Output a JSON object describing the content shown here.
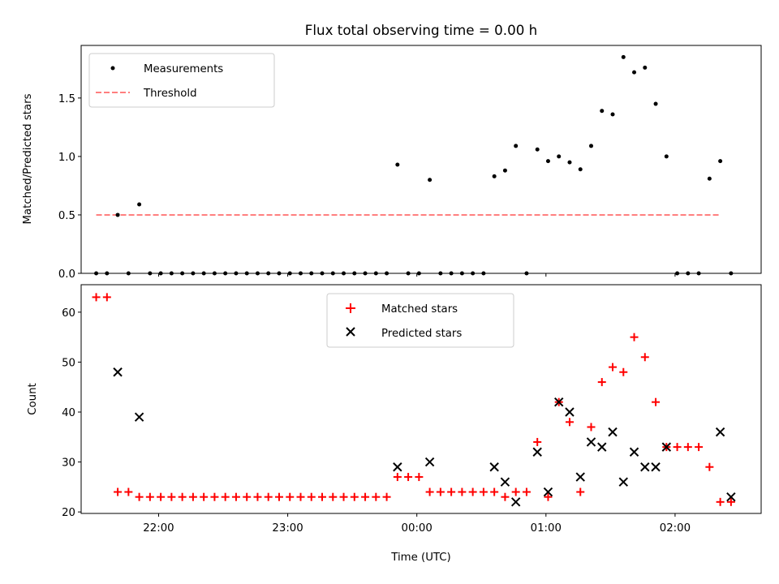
{
  "figure": {
    "title": "Flux total observing time = 0.00 h",
    "xlabel": "Time (UTC)"
  },
  "colors": {
    "measurements": "#000000",
    "threshold": "#ff7f7f",
    "matched": "#ff0000",
    "predicted": "#000000"
  },
  "chart_data": [
    {
      "type": "scatter",
      "panel": "top",
      "ylabel": "Matched/Predicted stars",
      "ylim": [
        0,
        1.95
      ],
      "xlim": [
        "21:24",
        "02:40"
      ],
      "yticks": [
        0.0,
        0.5,
        1.0,
        1.5
      ],
      "ytick_labels": [
        "0.0",
        "0.5",
        "1.0",
        "1.5"
      ],
      "legend": {
        "placement": "top-left",
        "entries": [
          "Measurements",
          "Threshold"
        ]
      },
      "series": [
        {
          "name": "Measurements",
          "marker": "dot",
          "x": [
            "21:31",
            "21:36",
            "21:41",
            "21:46",
            "21:51",
            "21:56",
            "22:01",
            "22:06",
            "22:11",
            "22:16",
            "22:21",
            "22:26",
            "22:31",
            "22:36",
            "22:41",
            "22:46",
            "22:51",
            "22:56",
            "23:01",
            "23:06",
            "23:11",
            "23:16",
            "23:21",
            "23:26",
            "23:31",
            "23:36",
            "23:41",
            "23:46",
            "23:51",
            "23:56",
            "00:01",
            "00:06",
            "00:11",
            "00:16",
            "00:21",
            "00:26",
            "00:31",
            "00:36",
            "00:41",
            "00:46",
            "00:51",
            "00:56",
            "01:01",
            "01:06",
            "01:11",
            "01:16",
            "01:21",
            "01:26",
            "01:31",
            "01:36",
            "01:41",
            "01:46",
            "01:51",
            "01:56",
            "02:01",
            "02:06",
            "02:11",
            "02:16",
            "02:21",
            "02:26"
          ],
          "y": [
            0,
            0,
            0.5,
            0,
            0.59,
            0,
            0,
            0,
            0,
            0,
            0,
            0,
            0,
            0,
            0,
            0,
            0,
            0,
            0,
            0,
            0,
            0,
            0,
            0,
            0,
            0,
            0,
            0,
            0.93,
            0,
            0,
            0.8,
            0,
            0,
            0,
            0,
            0,
            0.83,
            0.88,
            1.09,
            0,
            1.06,
            0.96,
            1.0,
            0.95,
            0.89,
            1.09,
            1.39,
            1.36,
            1.85,
            1.72,
            1.76,
            1.45,
            1.0,
            0,
            0,
            0,
            0.81,
            0.96,
            0
          ]
        },
        {
          "name": "Threshold",
          "style": "dashed",
          "x": [
            "21:31",
            "02:21"
          ],
          "y": [
            0.5,
            0.5
          ]
        }
      ]
    },
    {
      "type": "scatter",
      "panel": "bottom",
      "ylabel": "Count",
      "ylim": [
        19.7,
        65.5
      ],
      "xlim": [
        "21:24",
        "02:40"
      ],
      "yticks": [
        20,
        30,
        40,
        50,
        60
      ],
      "ytick_labels": [
        "20",
        "30",
        "40",
        "50",
        "60"
      ],
      "xticks": [
        "22:00",
        "23:00",
        "00:00",
        "01:00",
        "02:00"
      ],
      "xtick_labels": [
        "22:00",
        "23:00",
        "00:00",
        "01:00",
        "02:00"
      ],
      "legend": {
        "placement": "top-center",
        "entries": [
          "Matched stars",
          "Predicted stars"
        ]
      },
      "series": [
        {
          "name": "Matched stars",
          "marker": "plus",
          "x": [
            "21:31",
            "21:36",
            "21:41",
            "21:46",
            "21:51",
            "21:56",
            "22:01",
            "22:06",
            "22:11",
            "22:16",
            "22:21",
            "22:26",
            "22:31",
            "22:36",
            "22:41",
            "22:46",
            "22:51",
            "22:56",
            "23:01",
            "23:06",
            "23:11",
            "23:16",
            "23:21",
            "23:26",
            "23:31",
            "23:36",
            "23:41",
            "23:46",
            "23:51",
            "23:56",
            "00:01",
            "00:06",
            "00:11",
            "00:16",
            "00:21",
            "00:26",
            "00:31",
            "00:36",
            "00:41",
            "00:46",
            "00:51",
            "00:56",
            "01:01",
            "01:06",
            "01:11",
            "01:16",
            "01:21",
            "01:26",
            "01:31",
            "01:36",
            "01:41",
            "01:46",
            "01:51",
            "01:56",
            "02:01",
            "02:06",
            "02:11",
            "02:16",
            "02:21",
            "02:26"
          ],
          "y": [
            63,
            63,
            24,
            24,
            23,
            23,
            23,
            23,
            23,
            23,
            23,
            23,
            23,
            23,
            23,
            23,
            23,
            23,
            23,
            23,
            23,
            23,
            23,
            23,
            23,
            23,
            23,
            23,
            27,
            27,
            27,
            24,
            24,
            24,
            24,
            24,
            24,
            24,
            23,
            24,
            24,
            34,
            23,
            42,
            38,
            24,
            37,
            46,
            49,
            48,
            55,
            51,
            42,
            33,
            33,
            33,
            33,
            29,
            22,
            22
          ]
        },
        {
          "name": "Predicted stars",
          "marker": "x",
          "x": [
            "21:41",
            "21:51",
            "23:51",
            "00:06",
            "00:36",
            "00:41",
            "00:46",
            "00:56",
            "01:01",
            "01:06",
            "01:11",
            "01:16",
            "01:21",
            "01:26",
            "01:31",
            "01:36",
            "01:41",
            "01:46",
            "01:51",
            "01:56",
            "02:21",
            "02:26"
          ],
          "y": [
            48,
            39,
            29,
            30,
            29,
            26,
            22,
            32,
            24,
            42,
            40,
            27,
            34,
            33,
            36,
            26,
            32,
            29,
            29,
            33,
            36,
            23
          ]
        }
      ]
    }
  ]
}
